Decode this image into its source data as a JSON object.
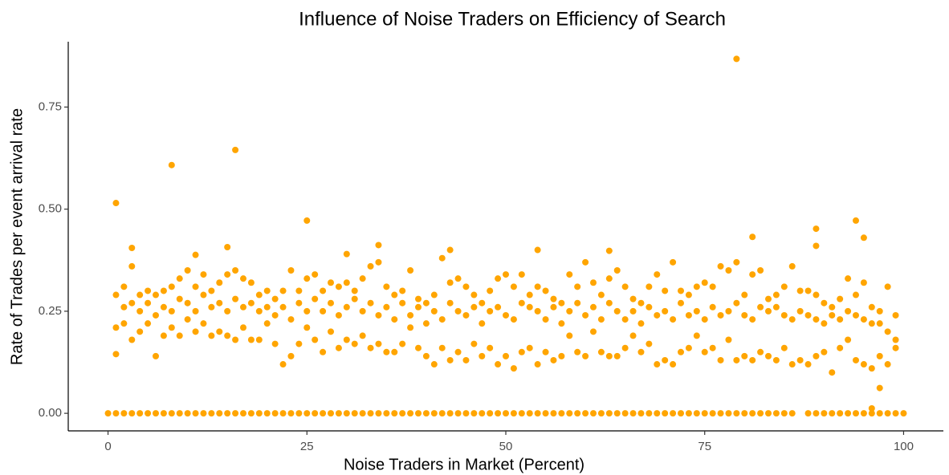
{
  "chart_data": {
    "type": "scatter",
    "title": "Influence of Noise Traders on Efficiency of Search",
    "x_label": "Noise Traders in Market (Percent)",
    "y_label": "Rate of Trades per event arrival rate",
    "color": "#FFA500",
    "xlim": [
      -5,
      105
    ],
    "ylim": [
      -0.043,
      0.91
    ],
    "xticks": [
      0,
      25,
      50,
      75,
      100
    ],
    "yticks": [
      {
        "value": 0,
        "label": "0.00"
      },
      {
        "value": 0.25,
        "label": "0.25"
      },
      {
        "value": 0.5,
        "label": "0.50"
      },
      {
        "value": 0.75,
        "label": "0.75"
      }
    ],
    "grid": false,
    "x": [
      0,
      1,
      2,
      3,
      4,
      5,
      6,
      7,
      8,
      9,
      10,
      11,
      12,
      13,
      14,
      15,
      16,
      17,
      18,
      19,
      20,
      21,
      22,
      23,
      24,
      25,
      26,
      27,
      28,
      29,
      30,
      31,
      32,
      33,
      34,
      35,
      36,
      37,
      38,
      39,
      40,
      41,
      42,
      43,
      44,
      45,
      46,
      47,
      48,
      49,
      50,
      51,
      52,
      53,
      54,
      55,
      56,
      57,
      58,
      59,
      60,
      61,
      62,
      63,
      64,
      65,
      66,
      67,
      68,
      69,
      70,
      71,
      72,
      73,
      74,
      75,
      76,
      77,
      78,
      79,
      80,
      81,
      82,
      83,
      84,
      85,
      86,
      88,
      89,
      90,
      91,
      92,
      93,
      94,
      95,
      96,
      97,
      98,
      99,
      100,
      1,
      1,
      1,
      2,
      2,
      2,
      3,
      3,
      3,
      4,
      4,
      4,
      5,
      5,
      5,
      6,
      6,
      6,
      7,
      7,
      7,
      8,
      8,
      8,
      9,
      9,
      9,
      10,
      10,
      10,
      11,
      11,
      11,
      12,
      12,
      12,
      13,
      13,
      13,
      14,
      14,
      14,
      15,
      15,
      15,
      16,
      16,
      16,
      17,
      17,
      17,
      18,
      18,
      18,
      19,
      19,
      19,
      20,
      20,
      20,
      21,
      21,
      21,
      22,
      22,
      22,
      23,
      23,
      23,
      24,
      24,
      24,
      25,
      25,
      25,
      26,
      26,
      26,
      27,
      27,
      27,
      28,
      28,
      28,
      29,
      29,
      29,
      30,
      30,
      30,
      31,
      31,
      31,
      32,
      32,
      32,
      33,
      33,
      33,
      34,
      34,
      34,
      35,
      35,
      35,
      36,
      36,
      36,
      37,
      37,
      37,
      38,
      38,
      38,
      39,
      39,
      39,
      40,
      40,
      40,
      41,
      41,
      41,
      42,
      42,
      42,
      43,
      43,
      43,
      44,
      44,
      44,
      45,
      45,
      45,
      46,
      46,
      46,
      47,
      47,
      47,
      48,
      48,
      48,
      49,
      49,
      49,
      50,
      50,
      50,
      51,
      51,
      51,
      52,
      52,
      52,
      53,
      53,
      53,
      54,
      54,
      54,
      55,
      55,
      55,
      56,
      56,
      56,
      57,
      57,
      57,
      58,
      58,
      58,
      59,
      59,
      59,
      60,
      60,
      60,
      61,
      61,
      61,
      62,
      62,
      62,
      63,
      63,
      63,
      64,
      64,
      64,
      65,
      65,
      65,
      66,
      66,
      66,
      67,
      67,
      67,
      68,
      68,
      68,
      69,
      69,
      69,
      70,
      70,
      70,
      71,
      71,
      71,
      72,
      72,
      72,
      73,
      73,
      73,
      74,
      74,
      74,
      75,
      75,
      75,
      76,
      76,
      76,
      77,
      77,
      77,
      78,
      78,
      78,
      79,
      79,
      79,
      80,
      80,
      80,
      81,
      81,
      81,
      82,
      82,
      82,
      83,
      83,
      83,
      84,
      84,
      84,
      85,
      85,
      85,
      86,
      86,
      86,
      87,
      87,
      87,
      88,
      88,
      88,
      89,
      89,
      89,
      90,
      90,
      90,
      91,
      91,
      91,
      92,
      92,
      92,
      93,
      93,
      93,
      94,
      94,
      94,
      95,
      95,
      95,
      96,
      96,
      96,
      97,
      97,
      97,
      98,
      98,
      98,
      99,
      99,
      99,
      1,
      8,
      16,
      25,
      79,
      94,
      89,
      81,
      95,
      34,
      15,
      3,
      54,
      63,
      43,
      89,
      30,
      11,
      96,
      97
    ],
    "values": [
      0,
      0,
      0,
      0,
      0,
      0,
      0,
      0,
      0,
      0,
      0,
      0,
      0,
      0,
      0,
      0,
      0,
      0,
      0,
      0,
      0,
      0,
      0,
      0,
      0,
      0,
      0,
      0,
      0,
      0,
      0,
      0,
      0,
      0,
      0,
      0,
      0,
      0,
      0,
      0,
      0,
      0,
      0,
      0,
      0,
      0,
      0,
      0,
      0,
      0,
      0,
      0,
      0,
      0,
      0,
      0,
      0,
      0,
      0,
      0,
      0,
      0,
      0,
      0,
      0,
      0,
      0,
      0,
      0,
      0,
      0,
      0,
      0,
      0,
      0,
      0,
      0,
      0,
      0,
      0,
      0,
      0,
      0,
      0,
      0,
      0,
      0,
      0,
      0,
      0,
      0,
      0,
      0,
      0,
      0,
      0,
      0,
      0,
      0,
      0,
      0.145,
      0.21,
      0.29,
      0.22,
      0.26,
      0.31,
      0.18,
      0.27,
      0.36,
      0.2,
      0.25,
      0.29,
      0.22,
      0.27,
      0.3,
      0.14,
      0.24,
      0.29,
      0.19,
      0.26,
      0.3,
      0.21,
      0.25,
      0.31,
      0.19,
      0.28,
      0.33,
      0.23,
      0.27,
      0.35,
      0.2,
      0.25,
      0.31,
      0.22,
      0.29,
      0.34,
      0.19,
      0.26,
      0.3,
      0.2,
      0.27,
      0.32,
      0.19,
      0.25,
      0.34,
      0.18,
      0.28,
      0.35,
      0.21,
      0.26,
      0.33,
      0.18,
      0.27,
      0.32,
      0.18,
      0.25,
      0.29,
      0.22,
      0.26,
      0.3,
      0.17,
      0.24,
      0.28,
      0.12,
      0.26,
      0.3,
      0.14,
      0.23,
      0.35,
      0.17,
      0.27,
      0.3,
      0.21,
      0.25,
      0.33,
      0.18,
      0.28,
      0.34,
      0.15,
      0.25,
      0.3,
      0.2,
      0.27,
      0.32,
      0.16,
      0.24,
      0.31,
      0.18,
      0.26,
      0.32,
      0.17,
      0.28,
      0.3,
      0.19,
      0.25,
      0.33,
      0.16,
      0.27,
      0.36,
      0.17,
      0.24,
      0.37,
      0.15,
      0.26,
      0.31,
      0.15,
      0.23,
      0.29,
      0.17,
      0.27,
      0.3,
      0.21,
      0.24,
      0.35,
      0.16,
      0.26,
      0.28,
      0.14,
      0.22,
      0.27,
      0.12,
      0.25,
      0.29,
      0.16,
      0.23,
      0.38,
      0.13,
      0.27,
      0.32,
      0.15,
      0.25,
      0.33,
      0.13,
      0.24,
      0.31,
      0.17,
      0.26,
      0.29,
      0.14,
      0.22,
      0.27,
      0.16,
      0.25,
      0.3,
      0.12,
      0.26,
      0.33,
      0.14,
      0.24,
      0.34,
      0.11,
      0.23,
      0.31,
      0.15,
      0.27,
      0.34,
      0.16,
      0.26,
      0.29,
      0.12,
      0.25,
      0.31,
      0.15,
      0.23,
      0.3,
      0.13,
      0.26,
      0.28,
      0.14,
      0.22,
      0.27,
      0.19,
      0.25,
      0.34,
      0.15,
      0.27,
      0.31,
      0.14,
      0.24,
      0.37,
      0.2,
      0.26,
      0.32,
      0.15,
      0.23,
      0.29,
      0.14,
      0.27,
      0.33,
      0.14,
      0.25,
      0.35,
      0.16,
      0.23,
      0.31,
      0.19,
      0.25,
      0.28,
      0.15,
      0.22,
      0.27,
      0.17,
      0.26,
      0.31,
      0.12,
      0.24,
      0.34,
      0.13,
      0.25,
      0.3,
      0.12,
      0.23,
      0.37,
      0.15,
      0.27,
      0.3,
      0.16,
      0.24,
      0.29,
      0.19,
      0.25,
      0.31,
      0.15,
      0.23,
      0.32,
      0.16,
      0.26,
      0.31,
      0.13,
      0.24,
      0.36,
      0.18,
      0.25,
      0.35,
      0.13,
      0.27,
      0.37,
      0.14,
      0.24,
      0.29,
      0.13,
      0.23,
      0.34,
      0.15,
      0.26,
      0.35,
      0.14,
      0.25,
      0.28,
      0.13,
      0.26,
      0.29,
      0.16,
      0.24,
      0.31,
      0.12,
      0.23,
      0.36,
      0.13,
      0.25,
      0.3,
      0.12,
      0.24,
      0.3,
      0.14,
      0.23,
      0.29,
      0.15,
      0.22,
      0.27,
      0.1,
      0.24,
      0.26,
      0.16,
      0.23,
      0.28,
      0.18,
      0.25,
      0.33,
      0.13,
      0.24,
      0.29,
      0.12,
      0.23,
      0.32,
      0.11,
      0.22,
      0.26,
      0.14,
      0.22,
      0.25,
      0.12,
      0.2,
      0.31,
      0.16,
      0.18,
      0.24,
      0.515,
      0.608,
      0.645,
      0.472,
      0.868,
      0.472,
      0.452,
      0.432,
      0.43,
      0.412,
      0.407,
      0.405,
      0.4,
      0.398,
      0.4,
      0.41,
      0.39,
      0.388,
      0.012,
      0.062
    ]
  }
}
